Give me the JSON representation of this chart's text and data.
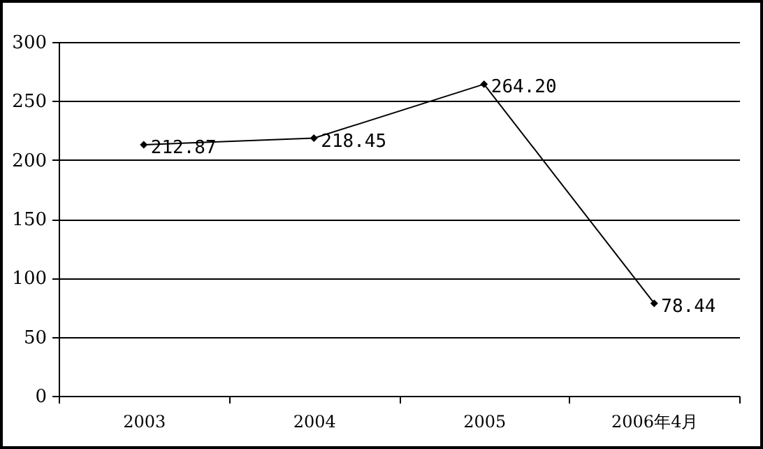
{
  "chart_data": {
    "type": "line",
    "categories": [
      "2003",
      "2004",
      "2005",
      "2006年4月"
    ],
    "series": [
      {
        "color": "#000000",
        "values": [
          212.87,
          218.45,
          264.2,
          78.44
        ],
        "value_labels": [
          "212.87",
          "218.45",
          "264.20",
          "78.44"
        ]
      }
    ],
    "ylim": [
      0,
      300
    ],
    "yticks": [
      0,
      50,
      100,
      150,
      200,
      250,
      300
    ],
    "grid": "y",
    "marker": "diamond",
    "line_style": "solid"
  }
}
